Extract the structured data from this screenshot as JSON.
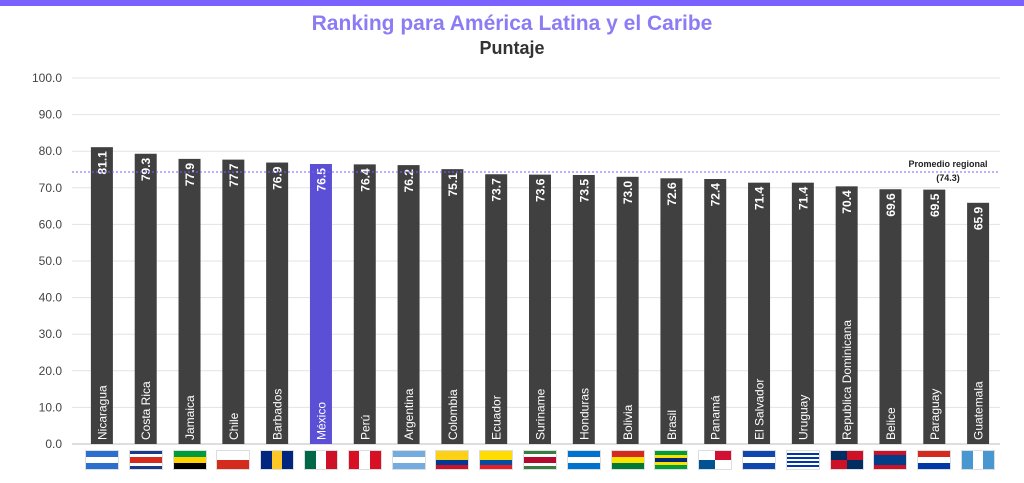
{
  "chart_data": {
    "type": "bar",
    "title": "Ranking para América Latina y el Caribe",
    "subtitle": "Puntaje",
    "xlabel": "",
    "ylabel": "",
    "ylim": [
      0,
      100
    ],
    "yticks": [
      "0.0",
      "10.0",
      "20.0",
      "30.0",
      "40.0",
      "50.0",
      "60.0",
      "70.0",
      "80.0",
      "90.0",
      "100.0"
    ],
    "grid": true,
    "categories": [
      "Nicaragua",
      "Costa Rica",
      "Jamaica",
      "Chile",
      "Barbados",
      "México",
      "Perú",
      "Argentina",
      "Colombia",
      "Ecuador",
      "Suriname",
      "Honduras",
      "Bolivia",
      "Brasil",
      "Panamá",
      "El Salvador",
      "Uruguay",
      "Republica Dominicana",
      "Belice",
      "Paraguay",
      "Guatemala"
    ],
    "values": [
      81.1,
      79.3,
      77.9,
      77.7,
      76.9,
      76.5,
      76.4,
      76.2,
      75.1,
      73.7,
      73.6,
      73.5,
      73.0,
      72.6,
      72.4,
      71.4,
      71.4,
      70.4,
      69.6,
      69.5,
      65.9
    ],
    "value_labels": [
      "81.1",
      "79.3",
      "77.9",
      "77.7",
      "76.9",
      "76.5",
      "76.4",
      "76.2",
      "75.1",
      "73.7",
      "73.6",
      "73.5",
      "73.0",
      "72.6",
      "72.4",
      "71.4",
      "71.4",
      "70.4",
      "69.6",
      "69.5",
      "65.9"
    ],
    "highlight": "México",
    "reference_line": {
      "value": 74.3,
      "label": "Promedio regional",
      "value_label": "(74.3)"
    },
    "colors": {
      "bar": "#404040",
      "highlight": "#5b4fd6",
      "reference": "#7b61ff",
      "title": "#8b7cf6",
      "grid": "#e3e3e3"
    }
  },
  "flags": [
    {
      "country": "Nicaragua",
      "icon": "nicaragua-flag-icon",
      "stripes": [
        "#2b6fcf",
        "#ffffff",
        "#2b6fcf"
      ],
      "dir": "h"
    },
    {
      "country": "Costa Rica",
      "icon": "costa-rica-flag-icon",
      "stripes": [
        "#1a3a8a",
        "#ffffff",
        "#d52b1e",
        "#d52b1e",
        "#ffffff",
        "#1a3a8a"
      ],
      "dir": "h"
    },
    {
      "country": "Jamaica",
      "icon": "jamaica-flag-icon",
      "stripes": [
        "#009b3a",
        "#fed100",
        "#000000"
      ],
      "dir": "h"
    },
    {
      "country": "Chile",
      "icon": "chile-flag-icon",
      "stripes": [
        "#ffffff",
        "#d52b1e"
      ],
      "dir": "h"
    },
    {
      "country": "Barbados",
      "icon": "barbados-flag-icon",
      "stripes": [
        "#00267f",
        "#ffc726",
        "#00267f"
      ],
      "dir": "v"
    },
    {
      "country": "México",
      "icon": "mexico-flag-icon",
      "stripes": [
        "#006847",
        "#ffffff",
        "#ce1126"
      ],
      "dir": "v"
    },
    {
      "country": "Perú",
      "icon": "peru-flag-icon",
      "stripes": [
        "#d91023",
        "#ffffff",
        "#d91023"
      ],
      "dir": "v"
    },
    {
      "country": "Argentina",
      "icon": "argentina-flag-icon",
      "stripes": [
        "#74acdf",
        "#ffffff",
        "#74acdf"
      ],
      "dir": "h"
    },
    {
      "country": "Colombia",
      "icon": "colombia-flag-icon",
      "stripes": [
        "#fcd116",
        "#fcd116",
        "#003893",
        "#ce1126"
      ],
      "dir": "h"
    },
    {
      "country": "Ecuador",
      "icon": "ecuador-flag-icon",
      "stripes": [
        "#ffdd00",
        "#ffdd00",
        "#034ea2",
        "#ed1c24"
      ],
      "dir": "h"
    },
    {
      "country": "Suriname",
      "icon": "suriname-flag-icon",
      "stripes": [
        "#377e3f",
        "#ffffff",
        "#b40a2d",
        "#b40a2d",
        "#ffffff",
        "#377e3f"
      ],
      "dir": "h"
    },
    {
      "country": "Honduras",
      "icon": "honduras-flag-icon",
      "stripes": [
        "#0073cf",
        "#ffffff",
        "#0073cf"
      ],
      "dir": "h"
    },
    {
      "country": "Bolivia",
      "icon": "bolivia-flag-icon",
      "stripes": [
        "#d52b1e",
        "#f9e300",
        "#007934"
      ],
      "dir": "h"
    },
    {
      "country": "Brasil",
      "icon": "brasil-flag-icon",
      "stripes": [
        "#009c3b",
        "#ffdf00",
        "#002776",
        "#ffdf00",
        "#009c3b"
      ],
      "dir": "h"
    },
    {
      "country": "Panamá",
      "icon": "panama-flag-icon",
      "stripes": [
        "#ffffff",
        "#d21034",
        "#005293",
        "#ffffff"
      ],
      "dir": "q"
    },
    {
      "country": "El Salvador",
      "icon": "el-salvador-flag-icon",
      "stripes": [
        "#0f47af",
        "#ffffff",
        "#0f47af"
      ],
      "dir": "h"
    },
    {
      "country": "Uruguay",
      "icon": "uruguay-flag-icon",
      "stripes": [
        "#ffffff",
        "#0038a8",
        "#ffffff",
        "#0038a8",
        "#ffffff",
        "#0038a8",
        "#ffffff",
        "#0038a8",
        "#ffffff"
      ],
      "dir": "h"
    },
    {
      "country": "Republica Dominicana",
      "icon": "dominican-republic-flag-icon",
      "stripes": [
        "#002d62",
        "#ce1126",
        "#ce1126",
        "#002d62"
      ],
      "dir": "q"
    },
    {
      "country": "Belice",
      "icon": "belize-flag-icon",
      "stripes": [
        "#ce1126",
        "#003f87",
        "#003f87",
        "#003f87",
        "#ce1126"
      ],
      "dir": "h"
    },
    {
      "country": "Paraguay",
      "icon": "paraguay-flag-icon",
      "stripes": [
        "#d52b1e",
        "#ffffff",
        "#0038a8"
      ],
      "dir": "h"
    },
    {
      "country": "Guatemala",
      "icon": "guatemala-flag-icon",
      "stripes": [
        "#4997d0",
        "#ffffff",
        "#4997d0"
      ],
      "dir": "v"
    }
  ]
}
